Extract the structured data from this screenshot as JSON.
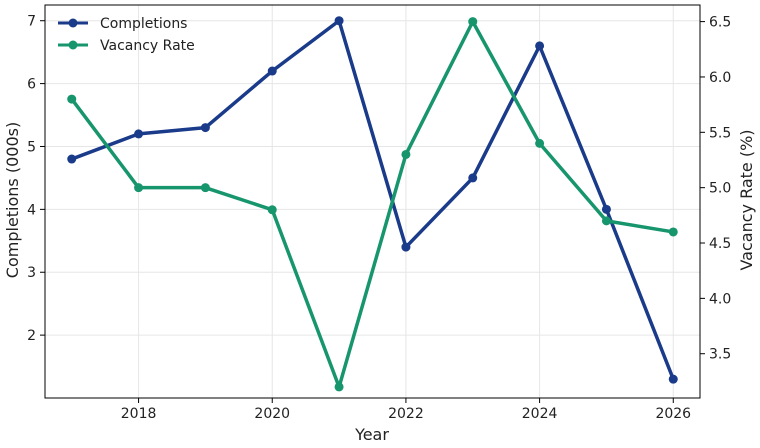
{
  "chart_data": {
    "type": "line",
    "title": "",
    "xlabel": "Year",
    "ylabel_left": "Completions (000s)",
    "ylabel_right": "Vacancy Rate (%)",
    "x": [
      2017,
      2018,
      2019,
      2020,
      2021,
      2022,
      2023,
      2024,
      2025,
      2026
    ],
    "xlim": [
      2016.6,
      2026.4
    ],
    "x_ticks": [
      2018,
      2020,
      2022,
      2024,
      2026
    ],
    "ylim_left": [
      1.0,
      7.25
    ],
    "y_ticks_left": [
      2,
      3,
      4,
      5,
      6,
      7
    ],
    "ylim_right": [
      3.1,
      6.65
    ],
    "y_ticks_right": [
      "3.5",
      "4.0",
      "4.5",
      "5.0",
      "5.5",
      "6.0",
      "6.5"
    ],
    "grid": true,
    "legend_position": "top-left",
    "series": [
      {
        "name": "Completions",
        "axis": "left",
        "color": "#1a3a8a",
        "values": [
          4.8,
          5.2,
          5.3,
          6.2,
          7.0,
          3.4,
          4.5,
          6.6,
          4.0,
          1.3
        ]
      },
      {
        "name": "Vacancy Rate",
        "axis": "right",
        "color": "#17956c",
        "values": [
          5.8,
          5.0,
          5.0,
          4.8,
          3.2,
          5.3,
          6.5,
          5.4,
          4.7,
          4.6
        ]
      }
    ]
  }
}
